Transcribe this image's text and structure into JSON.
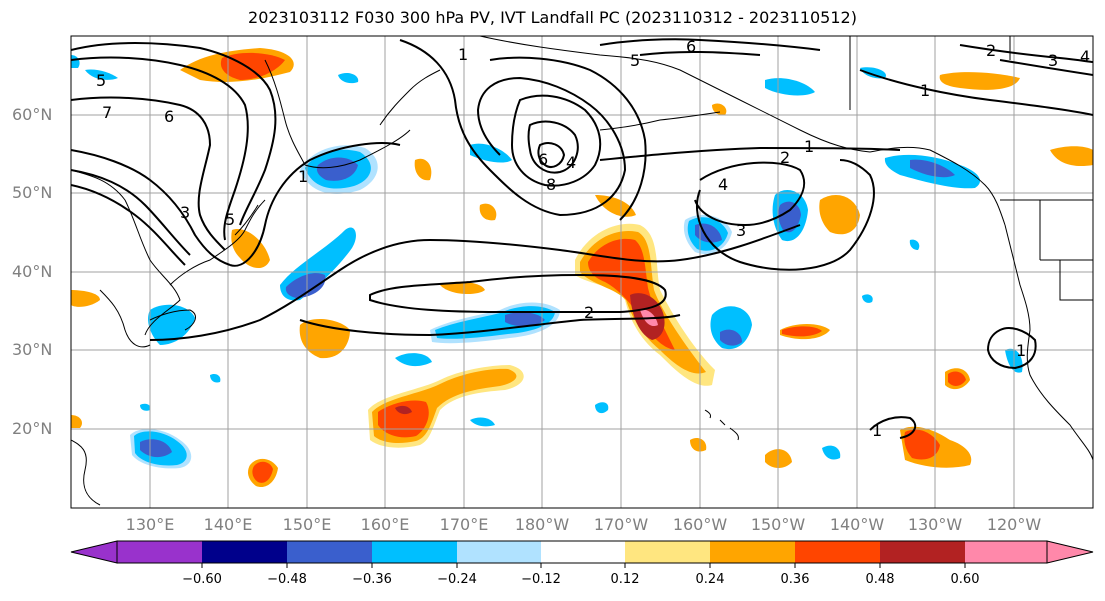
{
  "title": "2023103112 F030 300 hPa PV, IVT Landfall PC (2023110312 - 2023110512)",
  "lat_labels": [
    "60°N",
    "50°N",
    "40°N",
    "30°N",
    "20°N"
  ],
  "lon_labels": [
    "130°E",
    "140°E",
    "150°E",
    "160°E",
    "170°E",
    "180°W",
    "170°W",
    "160°W",
    "150°W",
    "140°W",
    "130°W",
    "120°W"
  ],
  "colorbar": {
    "ticks": [
      "−0.60",
      "−0.48",
      "−0.36",
      "−0.24",
      "−0.12",
      "0.12",
      "0.24",
      "0.36",
      "0.48",
      "0.60"
    ],
    "colors": [
      "#9932cc",
      "#00008b",
      "#3a5fcd",
      "#00bfff",
      "#b0e2ff",
      "#ffffff",
      "#ffe680",
      "#ffa500",
      "#ff4500",
      "#b22222",
      "#ff88aa",
      "#ff88aa"
    ]
  },
  "contour_labels": [
    "1",
    "2",
    "3",
    "4",
    "5",
    "6",
    "7",
    "8"
  ]
}
